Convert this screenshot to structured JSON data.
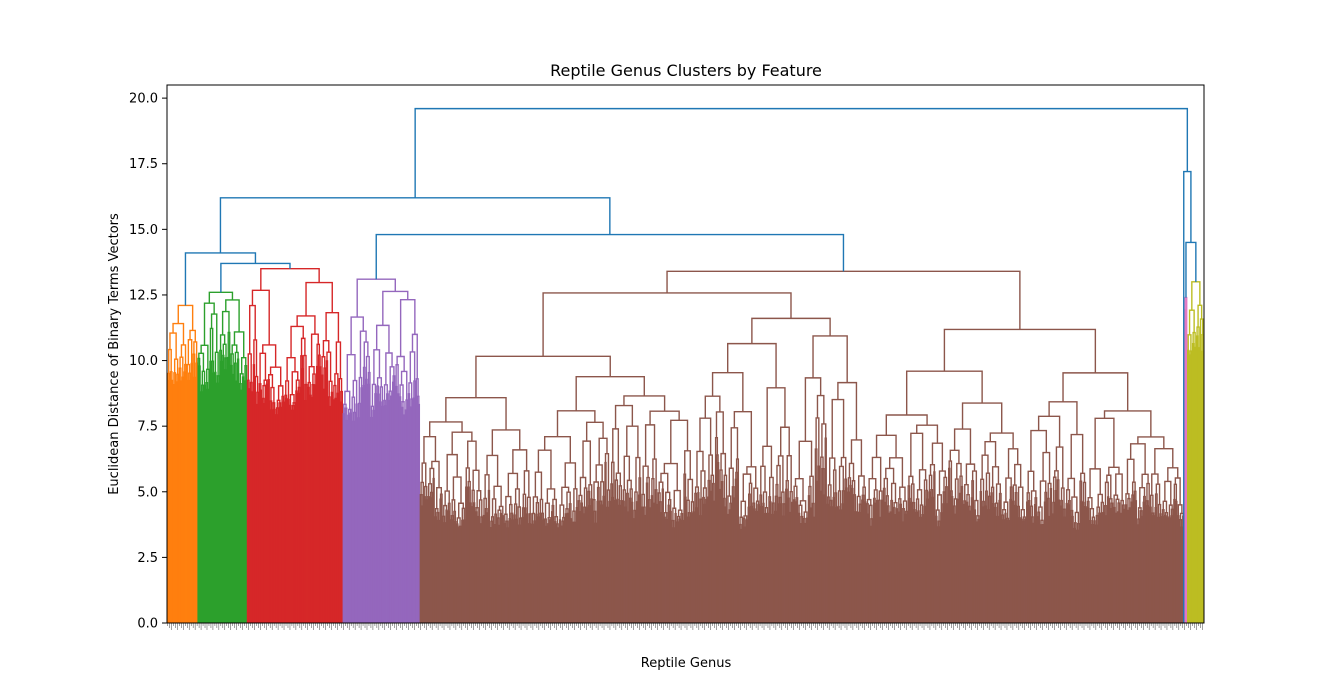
{
  "chart_data": {
    "type": "dendrogram",
    "title": "Reptile Genus Clusters by Feature",
    "xlabel": "Reptile Genus",
    "ylabel": "Euclidean Distance of Binary Terms Vectors",
    "ylim": [
      0,
      20.5
    ],
    "yticks": [
      0.0,
      2.5,
      5.0,
      7.5,
      10.0,
      12.5,
      15.0,
      17.5,
      20.0
    ],
    "ytick_labels": [
      "0.0",
      "2.5",
      "5.0",
      "7.5",
      "10.0",
      "12.5",
      "15.0",
      "17.5",
      "20.0"
    ],
    "leaf_count": 1050,
    "link_color_above_threshold": "#1f77b4",
    "clusters": [
      {
        "name": "orange",
        "color": "#ff7f0e",
        "leaf_start": 0,
        "leaf_end": 31,
        "merge_height": 12.1,
        "min_height": 8.2
      },
      {
        "name": "green",
        "color": "#2ca02c",
        "leaf_start": 31,
        "leaf_end": 81,
        "merge_height": 12.6,
        "min_height": 8.3
      },
      {
        "name": "red",
        "color": "#d62728",
        "leaf_start": 81,
        "leaf_end": 178,
        "merge_height": 13.5,
        "min_height": 7.6
      },
      {
        "name": "purple",
        "color": "#9467bd",
        "leaf_start": 178,
        "leaf_end": 256,
        "merge_height": 13.1,
        "min_height": 7.1
      },
      {
        "name": "brown",
        "color": "#8c564b",
        "leaf_start": 256,
        "leaf_end": 1030,
        "merge_height": 13.4,
        "min_height": 3.2
      },
      {
        "name": "pink",
        "color": "#e377c2",
        "leaf_start": 1030,
        "leaf_end": 1033,
        "merge_height": 12.4,
        "min_height": 11.0
      },
      {
        "name": "olive",
        "color": "#bcbd22",
        "leaf_start": 1033,
        "leaf_end": 1050,
        "merge_height": 13.0,
        "min_height": 9.5
      }
    ],
    "top_links": [
      {
        "left": "orange",
        "right": "green+red",
        "height": 14.1
      },
      {
        "left": "green",
        "right": "red",
        "height": 13.7
      },
      {
        "left": "orange+green+red",
        "right": "purple+brown",
        "height": 16.2
      },
      {
        "left": "purple",
        "right": "brown",
        "height": 14.8
      },
      {
        "left": "pink",
        "right": "olive",
        "height": 14.5
      },
      {
        "left": "pink+olive",
        "right": "(outlier)",
        "height": 17.2
      },
      {
        "left": "left-group",
        "right": "right-group",
        "height": 19.6
      }
    ]
  }
}
